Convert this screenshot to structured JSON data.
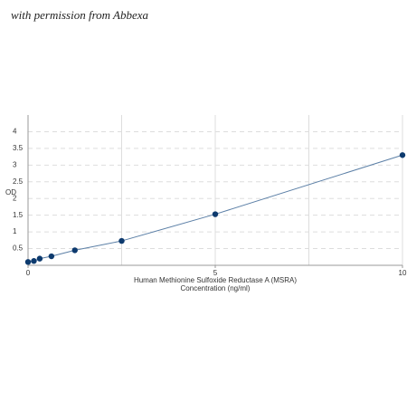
{
  "watermark": "with permission from Abbexa",
  "chart_data": {
    "type": "line",
    "ylabel": "OD",
    "xlabel": [
      "Human Methionine Sulfoxide Reductase A (MSRA)",
      "Concentration (ng/ml)"
    ],
    "x": [
      0,
      0.156,
      0.312,
      0.625,
      1.25,
      2.5,
      5,
      10
    ],
    "series": [
      {
        "color": "#5b7fa6",
        "marker_color": "#0d3a6e",
        "values": [
          0.1,
          0.13,
          0.2,
          0.27,
          0.45,
          0.73,
          1.53,
          3.3
        ]
      }
    ],
    "xlim": [
      0,
      10
    ],
    "xticks": [
      0,
      5,
      10
    ],
    "xgrid": [
      2.5,
      5,
      7.5,
      10
    ],
    "ylim": [
      0,
      4.5
    ],
    "yticks": [
      0.5,
      1,
      1.5,
      2,
      2.5,
      3,
      3.5,
      4
    ],
    "grid": true
  }
}
